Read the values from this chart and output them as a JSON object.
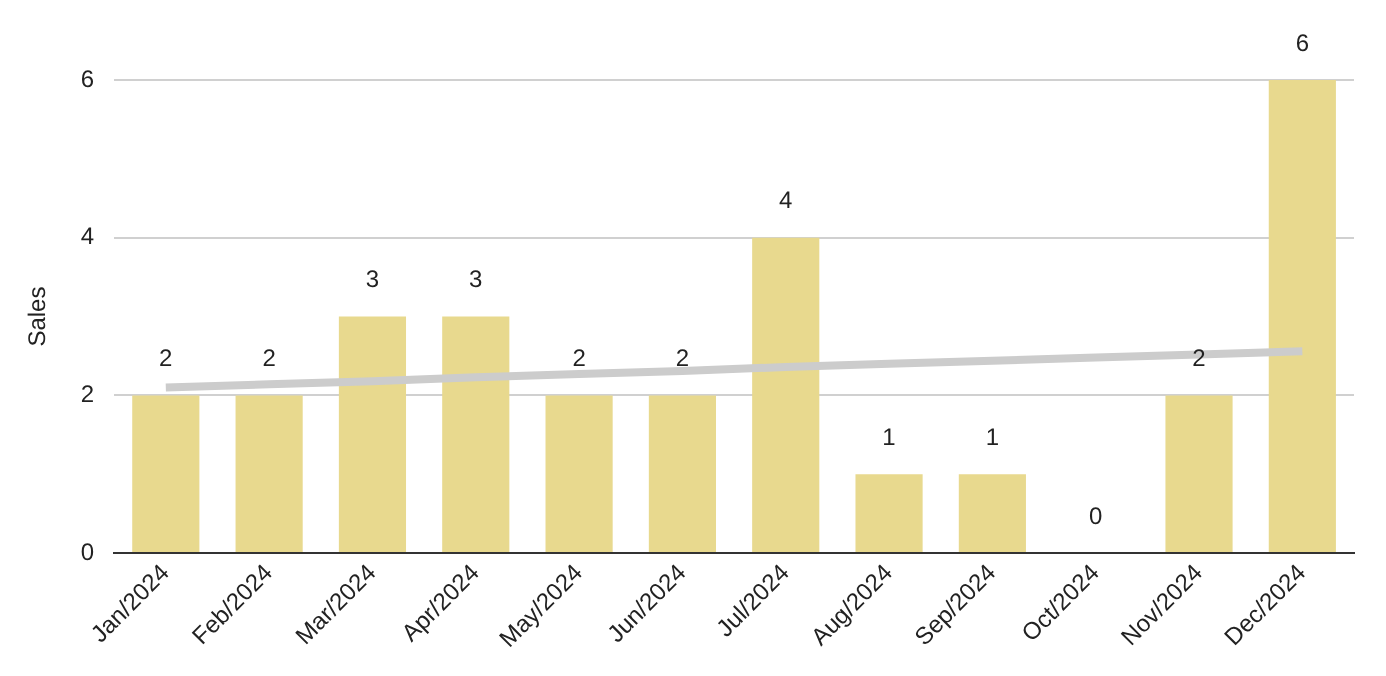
{
  "chart_data": {
    "type": "bar",
    "ylabel": "Sales",
    "categories": [
      "Jan/2024",
      "Feb/2024",
      "Mar/2024",
      "Apr/2024",
      "May/2024",
      "Jun/2024",
      "Jul/2024",
      "Aug/2024",
      "Sep/2024",
      "Oct/2024",
      "Nov/2024",
      "Dec/2024"
    ],
    "series": [
      {
        "color": "#e8d98e",
        "values": [
          2,
          2,
          3,
          3,
          2,
          2,
          4,
          1,
          1,
          0,
          2,
          6
        ],
        "value_labels": [
          "2",
          "2",
          "3",
          "3",
          "2",
          "2",
          "4",
          "1",
          "1",
          "0",
          "2",
          "6"
        ]
      },
      {
        "type": "line",
        "color": "#cccccc",
        "values": [
          2.1,
          2.14,
          2.18,
          2.23,
          2.27,
          2.31,
          2.36,
          2.4,
          2.44,
          2.48,
          2.52,
          2.56
        ]
      }
    ],
    "ylim": [
      0,
      6
    ],
    "yticks": [
      0,
      2,
      4,
      6
    ],
    "grid": "y",
    "legend": false
  }
}
